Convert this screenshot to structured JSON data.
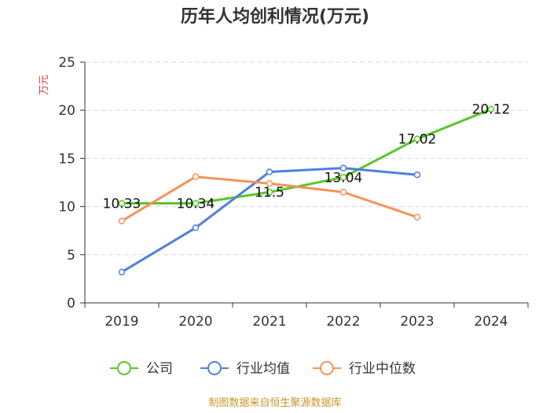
{
  "chart_data": {
    "type": "line",
    "title": "历年人均创利情况(万元)",
    "ylabel": "万元",
    "categories": [
      "2019",
      "2020",
      "2021",
      "2022",
      "2023",
      "2024"
    ],
    "ylim": [
      0,
      25
    ],
    "yticks": [
      "0",
      "5",
      "10",
      "15",
      "20",
      "25"
    ],
    "grid": true,
    "legend_position": "bottom",
    "series": [
      {
        "name": "公司",
        "color": "#5cc52b",
        "values": [
          10.33,
          10.34,
          11.5,
          13.04,
          17.02,
          20.12
        ],
        "labels": [
          "10.33",
          "10.34",
          "11.5",
          "13.04",
          "17.02",
          "20.12"
        ]
      },
      {
        "name": "行业均值",
        "color": "#4e80dc",
        "values": [
          3.2,
          7.8,
          13.6,
          14.0,
          13.3,
          null
        ]
      },
      {
        "name": "行业中位数",
        "color": "#f5935a",
        "values": [
          8.5,
          13.1,
          12.4,
          11.5,
          8.9,
          null
        ]
      }
    ]
  },
  "source": "制图数据来自恒生聚源数据库"
}
